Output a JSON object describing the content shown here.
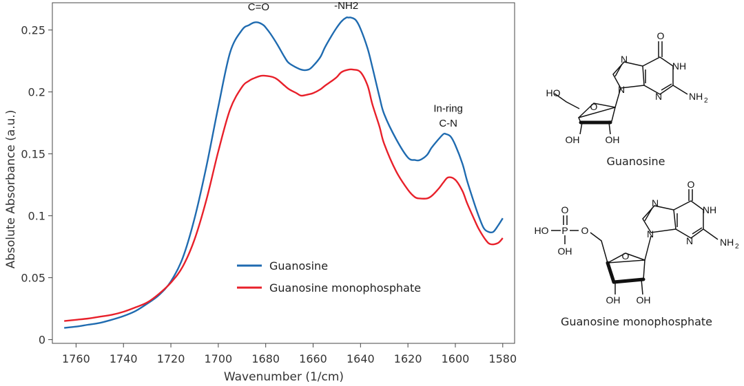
{
  "chart_data": {
    "type": "line",
    "xlabel": "Wavenumber (1/cm)",
    "ylabel": "Absolute Absorbance (a.u.)",
    "xlim": [
      1770,
      1575
    ],
    "ylim": [
      -0.003,
      0.272
    ],
    "x_reversed": true,
    "grid": false,
    "legend_position": "bottom-center",
    "x_ticks": [
      1760,
      1740,
      1720,
      1700,
      1680,
      1660,
      1640,
      1620,
      1600,
      1580
    ],
    "y_ticks": [
      0,
      0.05,
      0.1,
      0.15,
      0.2,
      0.25
    ],
    "y_tick_labels": [
      "0",
      "0.05",
      "0.1",
      "0.15",
      "0.2",
      "0.25"
    ],
    "series": [
      {
        "name": "Guanosine",
        "color": "#1f6bb0",
        "x": [
          1765,
          1760,
          1755,
          1750,
          1745,
          1740,
          1735,
          1730,
          1725,
          1720,
          1715,
          1710,
          1705,
          1700,
          1695,
          1690,
          1687,
          1685,
          1683,
          1681,
          1680,
          1678,
          1675,
          1672,
          1670,
          1665,
          1662,
          1660,
          1657,
          1655,
          1652,
          1650,
          1648,
          1646,
          1645,
          1644,
          1642,
          1640,
          1637,
          1635,
          1632,
          1630,
          1625,
          1620,
          1617,
          1615,
          1612,
          1610,
          1607,
          1605,
          1604,
          1602,
          1600,
          1597,
          1595,
          1592,
          1590,
          1588,
          1586,
          1584,
          1582,
          1580
        ],
        "y": [
          0.0095,
          0.0105,
          0.012,
          0.0135,
          0.016,
          0.019,
          0.023,
          0.029,
          0.036,
          0.047,
          0.066,
          0.098,
          0.14,
          0.188,
          0.232,
          0.25,
          0.254,
          0.256,
          0.256,
          0.254,
          0.252,
          0.247,
          0.238,
          0.228,
          0.223,
          0.218,
          0.218,
          0.221,
          0.228,
          0.236,
          0.246,
          0.252,
          0.257,
          0.26,
          0.26,
          0.26,
          0.258,
          0.251,
          0.235,
          0.22,
          0.196,
          0.182,
          0.162,
          0.147,
          0.145,
          0.145,
          0.149,
          0.155,
          0.162,
          0.166,
          0.166,
          0.164,
          0.157,
          0.142,
          0.128,
          0.11,
          0.099,
          0.09,
          0.087,
          0.087,
          0.092,
          0.098
        ]
      },
      {
        "name": "Guanosine monophosphate",
        "color": "#e8202a",
        "x": [
          1765,
          1760,
          1755,
          1750,
          1745,
          1740,
          1735,
          1730,
          1725,
          1720,
          1715,
          1710,
          1705,
          1700,
          1695,
          1690,
          1687,
          1685,
          1682,
          1680,
          1677,
          1675,
          1672,
          1670,
          1667,
          1665,
          1662,
          1660,
          1657,
          1655,
          1652,
          1650,
          1648,
          1645,
          1643,
          1640,
          1637,
          1635,
          1632,
          1630,
          1625,
          1620,
          1617,
          1615,
          1612,
          1610,
          1607,
          1605,
          1603,
          1600,
          1597,
          1595,
          1592,
          1590,
          1587,
          1585,
          1582,
          1580
        ],
        "y": [
          0.015,
          0.016,
          0.017,
          0.0185,
          0.02,
          0.0225,
          0.026,
          0.03,
          0.037,
          0.046,
          0.059,
          0.081,
          0.113,
          0.152,
          0.186,
          0.204,
          0.209,
          0.211,
          0.213,
          0.213,
          0.212,
          0.21,
          0.205,
          0.202,
          0.199,
          0.197,
          0.198,
          0.199,
          0.202,
          0.205,
          0.209,
          0.212,
          0.216,
          0.218,
          0.218,
          0.216,
          0.205,
          0.19,
          0.172,
          0.158,
          0.136,
          0.121,
          0.115,
          0.114,
          0.114,
          0.116,
          0.122,
          0.127,
          0.131,
          0.129,
          0.12,
          0.11,
          0.097,
          0.089,
          0.08,
          0.077,
          0.078,
          0.082
        ]
      }
    ],
    "annotations": [
      {
        "text": "C=O",
        "x": 1683,
        "y": 0.266
      },
      {
        "text": "-NH2",
        "x": 1646,
        "y": 0.267
      },
      {
        "text": "In-ring",
        "x": 1603,
        "y": 0.184
      },
      {
        "text": "C-N",
        "x": 1603,
        "y": 0.172
      }
    ]
  },
  "structures": {
    "guanosine": {
      "caption": "Guanosine",
      "labels": {
        "o_top": "O",
        "n7": "N",
        "nh": "NH",
        "n3": "N",
        "nh2": "NH",
        "n9": "N",
        "ho": "HO",
        "o_ring": "O",
        "oh_left": "OH",
        "oh_right": "OH",
        "sub2": "2"
      }
    },
    "gmp": {
      "caption": "Guanosine monophosphate",
      "labels": {
        "o_top": "O",
        "n7": "N",
        "nh": "NH",
        "n3": "N",
        "nh2": "NH",
        "n9": "N",
        "p_o": "O",
        "p": "P",
        "ho": "HO",
        "oh": "OH",
        "o_link": "O",
        "o_ring": "O",
        "oh_left": "OH",
        "oh_right": "OH",
        "sub2": "2"
      }
    }
  }
}
